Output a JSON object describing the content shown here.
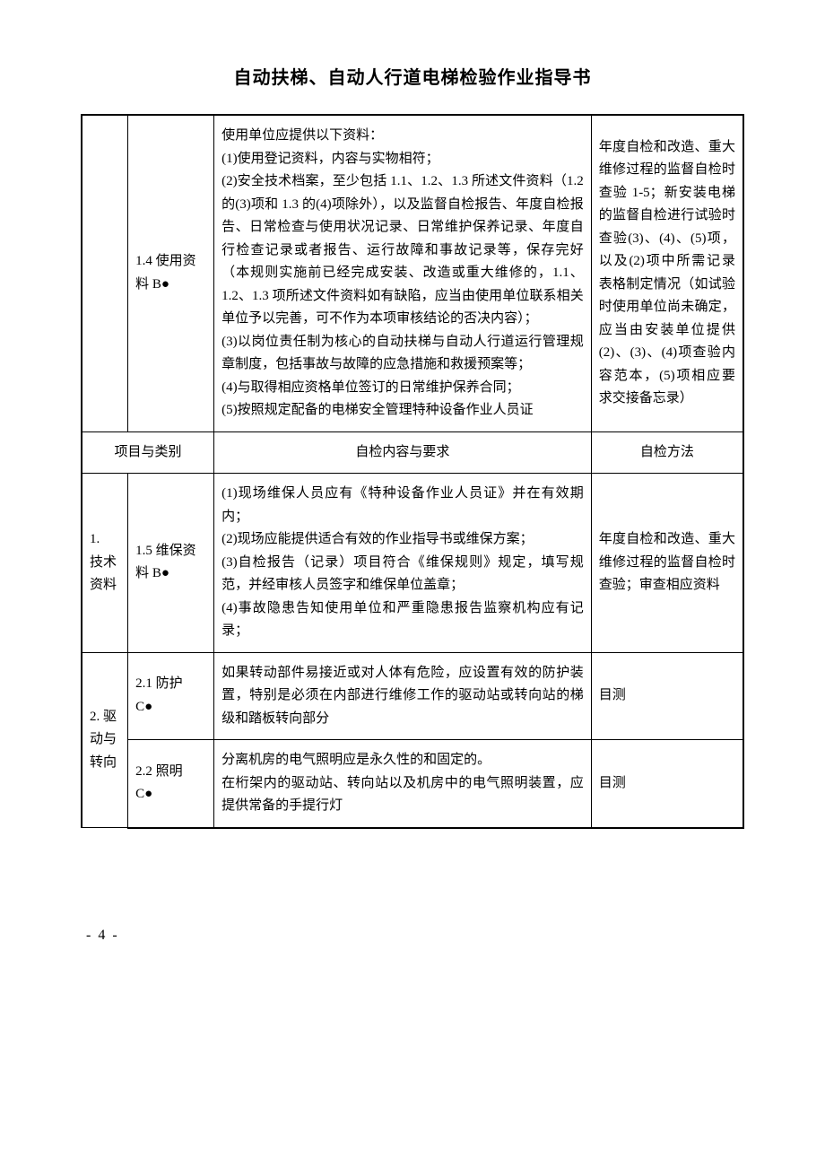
{
  "document": {
    "title": "自动扶梯、自动人行道电梯检验作业指导书",
    "page_number": "- 4 -",
    "colors": {
      "text": "#000000",
      "border": "#000000",
      "background": "#ffffff"
    },
    "fonts": {
      "title_family": "SimHei",
      "body_family": "SimSun",
      "title_size_pt": 15,
      "body_size_pt": 11
    }
  },
  "headers": {
    "project_category": "项目与类别",
    "content_requirements": "自检内容与要求",
    "method": "自检方法"
  },
  "rows": {
    "r1": {
      "item": "1.4 使用资料 B●",
      "content": "使用单位应提供以下资料：\n(1)使用登记资料，内容与实物相符；\n(2)安全技术档案，至少包括 1.1、1.2、1.3 所述文件资料（1.2 的(3)项和 1.3 的(4)项除外），以及监督自检报告、年度自检报告、日常检查与使用状况记录、日常维护保养记录、年度自行检查记录或者报告、运行故障和事故记录等，保存完好（本规则实施前已经完成安装、改造或重大维修的，1.1、1.2、1.3 项所述文件资料如有缺陷，应当由使用单位联系相关单位予以完善，可不作为本项审核结论的否决内容）；\n(3)以岗位责任制为核心的自动扶梯与自动人行道运行管理规章制度，包括事故与故障的应急措施和救援预案等；\n(4)与取得相应资格单位签订的日常维护保养合同；\n(5)按照规定配备的电梯安全管理特种设备作业人员证",
      "method": "年度自检和改造、重大维修过程的监督自检时查验 1-5；新安装电梯的监督自检进行试验时查验(3)、(4)、(5)项，以及(2)项中所需记录表格制定情况（如试验时使用单位尚未确定，应当由安装单位提供(2)、(3)、(4)项查验内容范本，(5)项相应要求交接备忘录）"
    },
    "r2": {
      "category": "1.\n技术资料",
      "item": "1.5 维保资料 B●",
      "content": "(1)现场维保人员应有《特种设备作业人员证》并在有效期内；\n(2)现场应能提供适合有效的作业指导书或维保方案；\n(3)自检报告（记录）项目符合《维保规则》规定，填写规范，并经审核人员签字和维保单位盖章；\n(4)事故隐患告知使用单位和严重隐患报告监察机构应有记录；",
      "method": "年度自检和改造、重大维修过程的监督自检时查验；审查相应资料"
    },
    "r3": {
      "category": "2. 驱动与转向",
      "item": "2.1 防护\nC●",
      "content": "如果转动部件易接近或对人体有危险，应设置有效的防护装置，特别是必须在内部进行维修工作的驱动站或转向站的梯级和踏板转向部分",
      "method": "目测"
    },
    "r4": {
      "item": "2.2 照明\nC●",
      "content": "分离机房的电气照明应是永久性的和固定的。\n在桁架内的驱动站、转向站以及机房中的电气照明装置，应提供常备的手提行灯",
      "method": "目测"
    }
  }
}
